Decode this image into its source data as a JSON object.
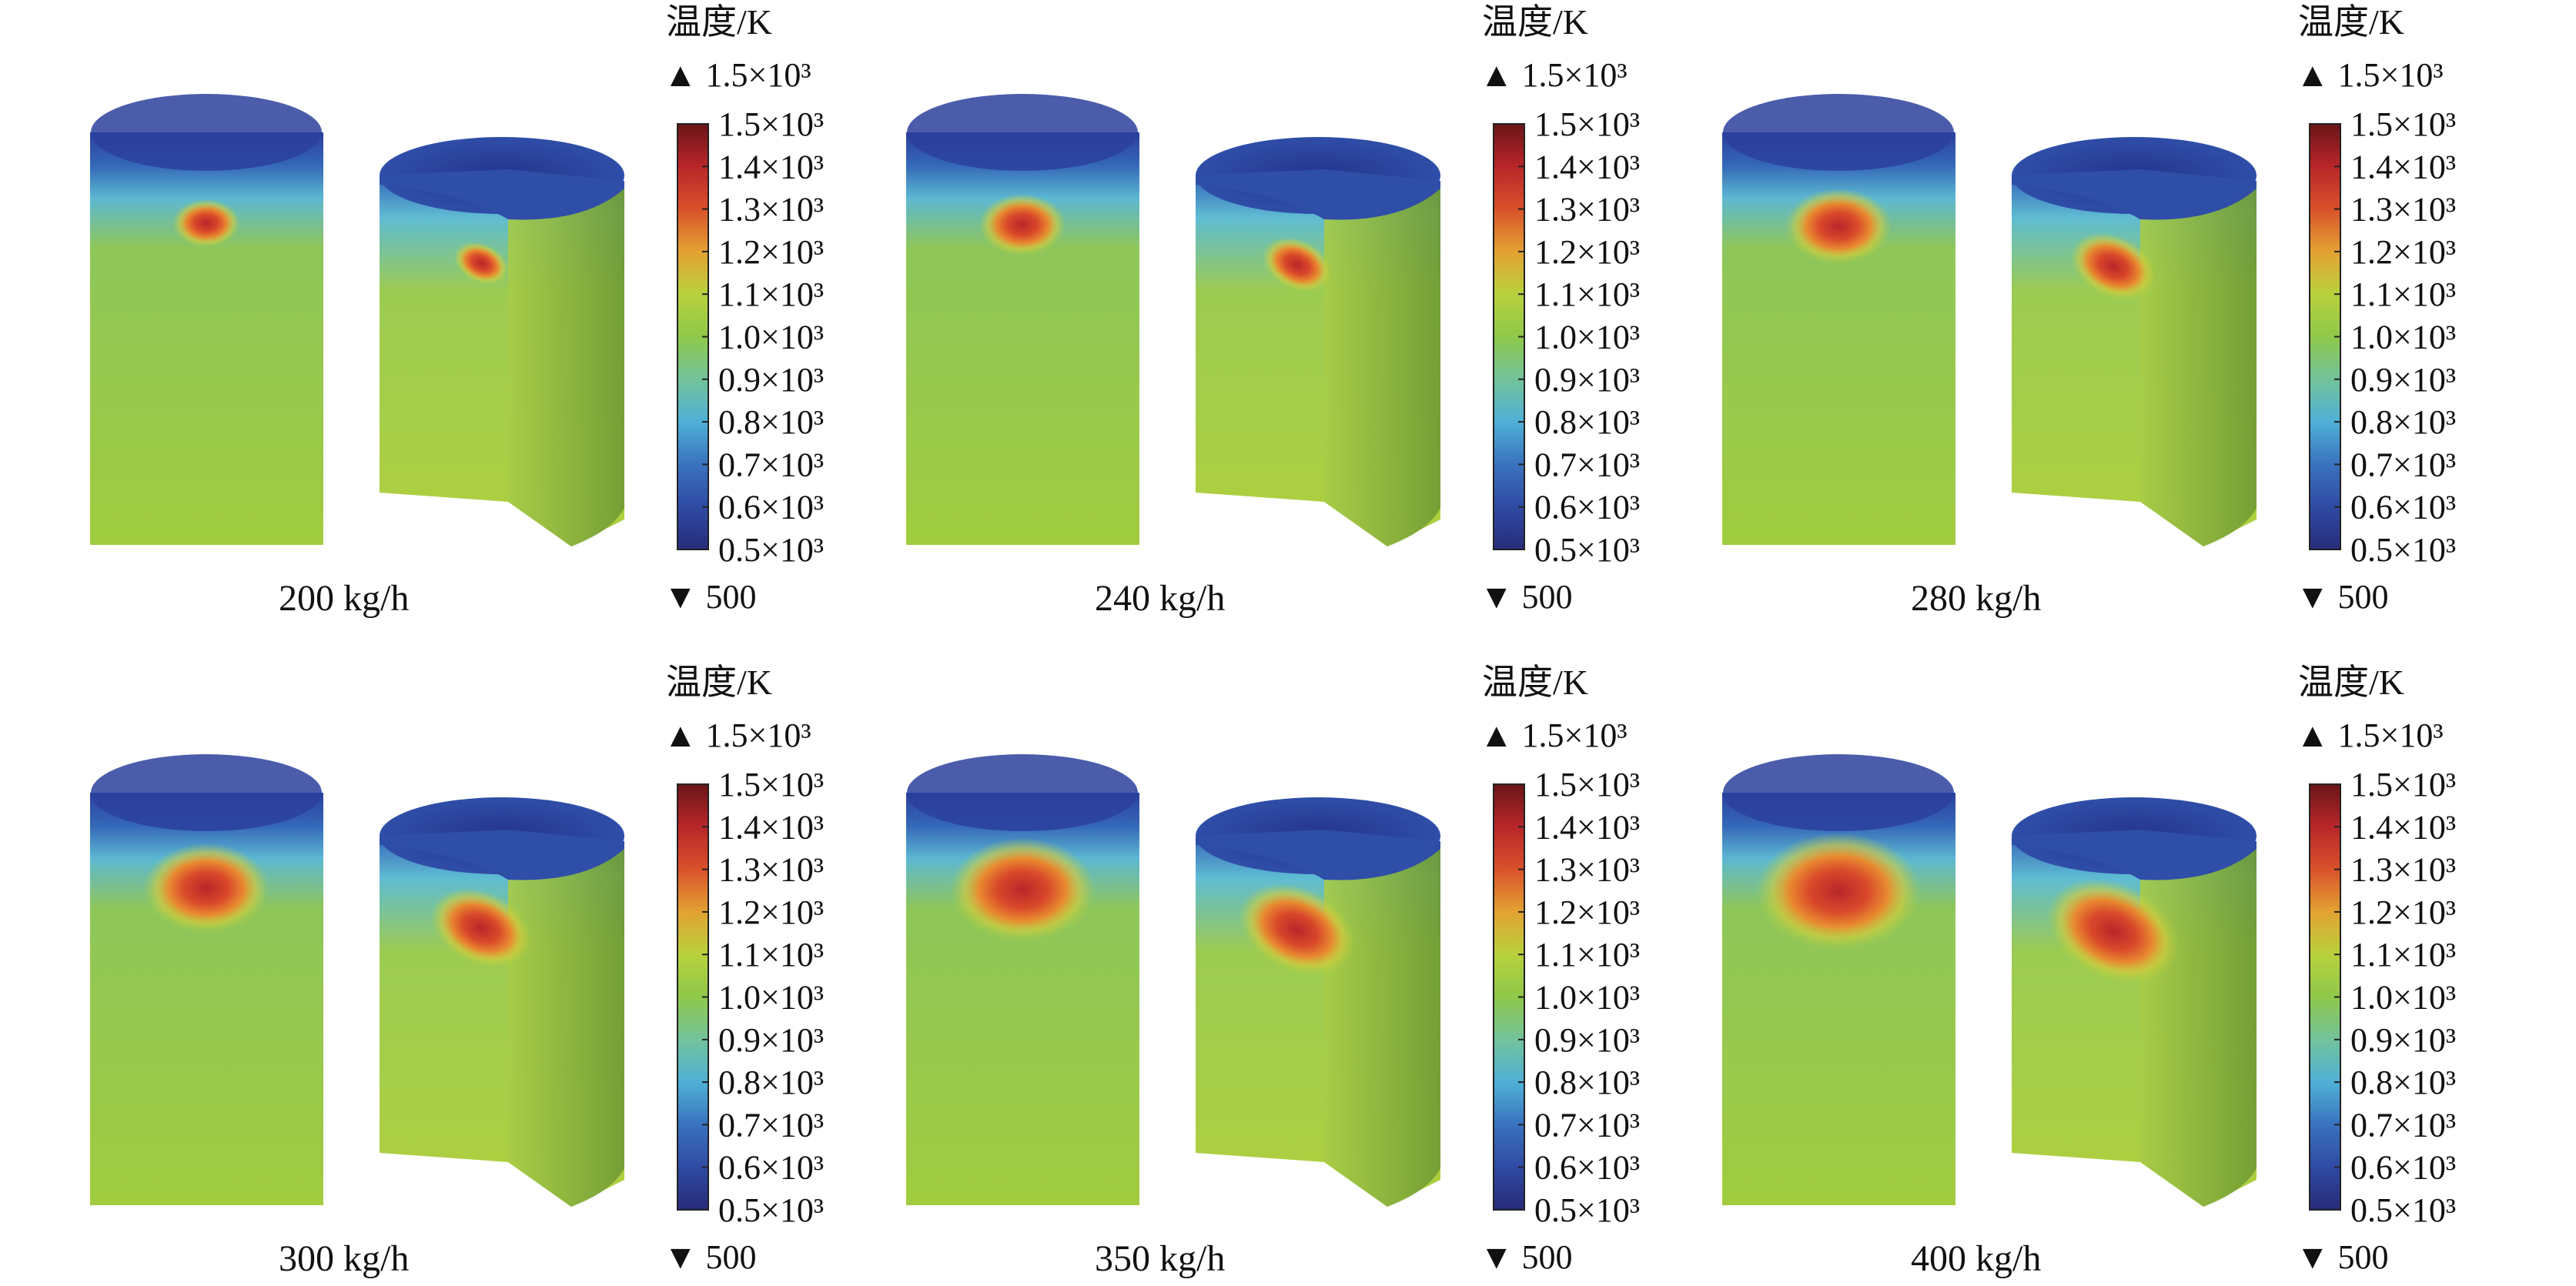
{
  "colorbar": {
    "title": "温度/K",
    "max_marker": "▲ 1.5×10³",
    "min_marker": "▼ 500",
    "ticks": [
      "1.5×10³",
      "1.4×10³",
      "1.3×10³",
      "1.2×10³",
      "1.1×10³",
      "1.0×10³",
      "0.9×10³",
      "0.8×10³",
      "0.7×10³",
      "0.6×10³",
      "0.5×10³"
    ],
    "range_K": [
      500,
      1500
    ],
    "colormap": [
      "#272c7a",
      "#2f4aa3",
      "#3a72bf",
      "#4fb0d6",
      "#73c39a",
      "#8fc84a",
      "#b8d13c",
      "#e3a232",
      "#d9512b",
      "#b8262a",
      "#6a1517"
    ]
  },
  "panels": [
    {
      "caption": "200 kg/h",
      "hotspot_level": 1
    },
    {
      "caption": "240 kg/h",
      "hotspot_level": 2
    },
    {
      "caption": "280 kg/h",
      "hotspot_level": 3
    },
    {
      "caption": "300 kg/h",
      "hotspot_level": 4
    },
    {
      "caption": "350 kg/h",
      "hotspot_level": 5
    },
    {
      "caption": "400 kg/h",
      "hotspot_level": 6
    }
  ]
}
